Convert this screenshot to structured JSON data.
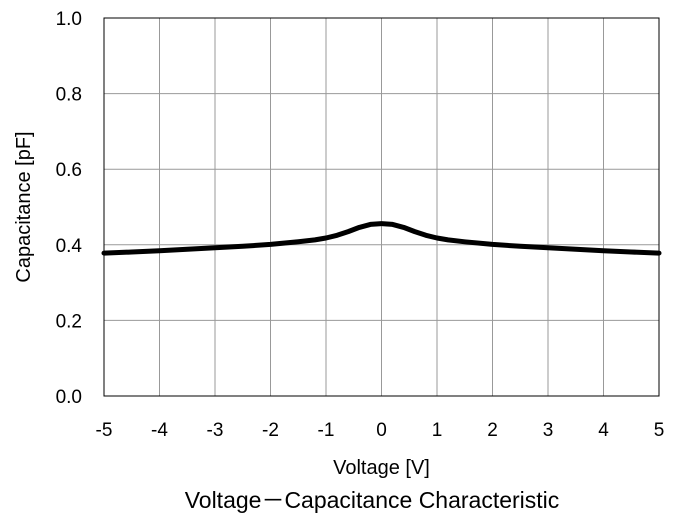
{
  "chart_data": {
    "type": "line",
    "title": "",
    "caption": "Voltage－Capacitance Characteristic",
    "xlabel": "Voltage [V]",
    "ylabel": "Capacitance [pF]",
    "xlim": [
      -5,
      5
    ],
    "ylim": [
      0.0,
      1.0
    ],
    "x_ticks": [
      -5,
      -4,
      -3,
      -2,
      -1,
      0,
      1,
      2,
      3,
      4,
      5
    ],
    "y_ticks": [
      0.0,
      0.2,
      0.4,
      0.6,
      0.8,
      1.0
    ],
    "x_tick_labels": [
      "-5",
      "-4",
      "-3",
      "-2",
      "-1",
      "0",
      "1",
      "2",
      "3",
      "4",
      "5"
    ],
    "y_tick_labels": [
      "0.0",
      "0.2",
      "0.4",
      "0.6",
      "0.8",
      "1.0"
    ],
    "grid": true,
    "line_color": "#000000",
    "grid_color": "#999999",
    "series": [
      {
        "x": [
          -5,
          -4.5,
          -4,
          -3.5,
          -3,
          -2.5,
          -2,
          -1.5,
          -1.2,
          -1,
          -0.8,
          -0.6,
          -0.4,
          -0.2,
          0,
          0.2,
          0.4,
          0.6,
          0.8,
          1,
          1.2,
          1.5,
          2,
          2.5,
          3,
          3.5,
          4,
          4.5,
          5
        ],
        "y": [
          0.378,
          0.381,
          0.384,
          0.388,
          0.392,
          0.396,
          0.401,
          0.408,
          0.413,
          0.418,
          0.425,
          0.435,
          0.446,
          0.454,
          0.456,
          0.454,
          0.446,
          0.435,
          0.425,
          0.418,
          0.413,
          0.408,
          0.401,
          0.396,
          0.392,
          0.388,
          0.384,
          0.381,
          0.378
        ]
      }
    ]
  }
}
